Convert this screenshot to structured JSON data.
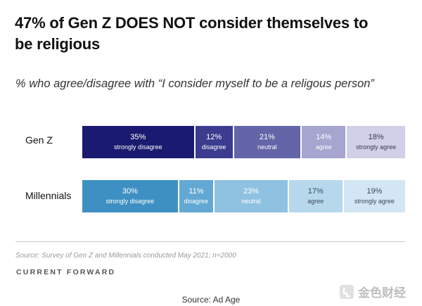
{
  "title": "47% of Gen Z DOES NOT consider themselves to be religious",
  "subtitle": "% who agree/disagree with “I consider myself to be a religous person”",
  "chart_data": {
    "type": "bar",
    "orientation": "horizontal",
    "stacked": true,
    "categories": [
      "Gen Z",
      "Millennials"
    ],
    "series": [
      {
        "name": "Gen Z",
        "segments": [
          {
            "value": 35,
            "pct": "35%",
            "label": "strongly disagree",
            "color": "#1a1a70",
            "text": "#ffffff"
          },
          {
            "value": 12,
            "pct": "12%",
            "label": "disagree",
            "color": "#3b3b8f",
            "text": "#ffffff"
          },
          {
            "value": 21,
            "pct": "21%",
            "label": "neutral",
            "color": "#6464a8",
            "text": "#ffffff"
          },
          {
            "value": 14,
            "pct": "14%",
            "label": "agree",
            "color": "#a5a5cf",
            "text": "#ffffff"
          },
          {
            "value": 18,
            "pct": "18%",
            "label": "strongly agree",
            "color": "#d0d0e8",
            "text": "#3a3a5a"
          }
        ]
      },
      {
        "name": "Millennials",
        "segments": [
          {
            "value": 30,
            "pct": "30%",
            "label": "strongly disagree",
            "color": "#3e90c3",
            "text": "#ffffff"
          },
          {
            "value": 11,
            "pct": "11%",
            "label": "disagree",
            "color": "#62a8d2",
            "text": "#ffffff"
          },
          {
            "value": 23,
            "pct": "23%",
            "label": "neutral",
            "color": "#8fc2e0",
            "text": "#ffffff"
          },
          {
            "value": 17,
            "pct": "17%",
            "label": "agree",
            "color": "#b7d8ec",
            "text": "#3a4a5a"
          },
          {
            "value": 19,
            "pct": "19%",
            "label": "strongly agree",
            "color": "#d2e6f3",
            "text": "#3a4a5a"
          }
        ]
      }
    ]
  },
  "source_note": "Source: Survey of Gen Z and Millennials conducted May 2021; n=2000",
  "brand": "CURRENT FORWARD",
  "credit": "Source: Ad Age",
  "watermark": "金色财经"
}
